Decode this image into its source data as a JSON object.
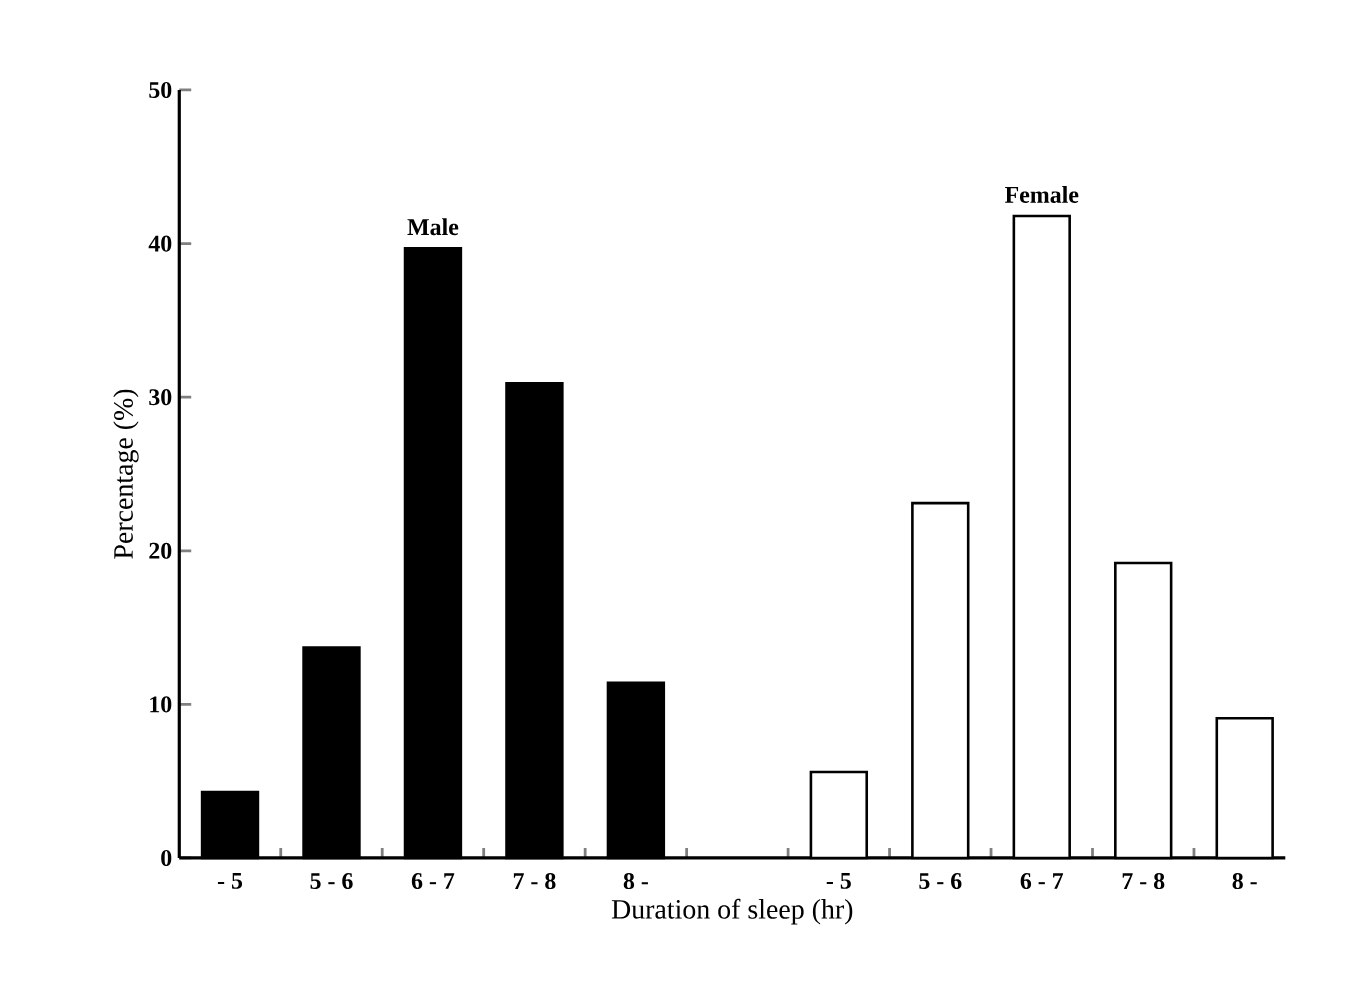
{
  "chart_data": {
    "type": "bar",
    "xlabel": "Duration of sleep (hr)",
    "ylabel": "Percentage (%)",
    "categories": [
      "- 5",
      "5 - 6",
      "6 - 7",
      "7 - 8",
      "8 -",
      null,
      "- 5",
      "5 - 6",
      "6 - 7",
      "7 - 8",
      "8 -"
    ],
    "series": [
      {
        "name": "Male",
        "color": "#000000",
        "values": [
          4.3,
          13.7,
          39.7,
          30.9,
          11.4,
          null,
          null,
          null,
          null,
          null,
          null
        ]
      },
      {
        "name": "Female",
        "color": "#ffffff",
        "values": [
          null,
          null,
          null,
          null,
          null,
          null,
          5.6,
          23.1,
          41.8,
          19.2,
          9.1
        ]
      }
    ],
    "ylim": [
      0,
      50
    ],
    "yticks": [
      0,
      10,
      20,
      30,
      40,
      50
    ]
  }
}
